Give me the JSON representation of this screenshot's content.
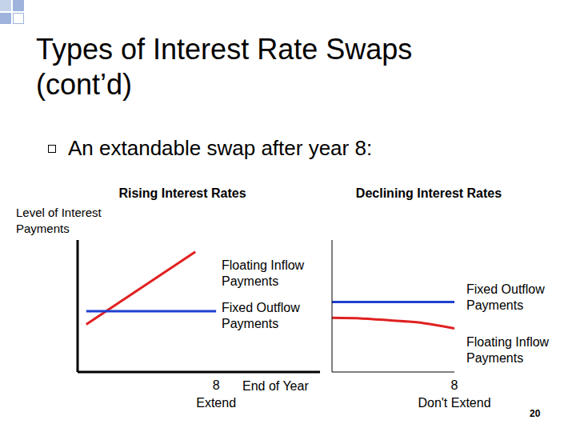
{
  "title": "Types of Interest Rate Swaps (cont’d)",
  "bullet": "An extandable swap after year 8:",
  "page_number": "20",
  "chart_data": [
    {
      "type": "line",
      "title": "Rising Interest Rates",
      "ylabel": "Level of Interest Payments",
      "xlabel": "End of Year",
      "x": [
        0.5,
        6.8,
        8
      ],
      "xlim": [
        0,
        14
      ],
      "xticks": [
        8
      ],
      "ylim": [
        0,
        10
      ],
      "yticks": [],
      "tick_labels": "x",
      "series": [
        {
          "name": "Floating Inflow Payments",
          "color": "#e02020",
          "values": [
            3.6,
            9.1,
            null
          ]
        },
        {
          "name": "Fixed Outflow Payments",
          "color": "#1f3fd0",
          "values": [
            4.6,
            4.6,
            4.6
          ]
        }
      ],
      "annotations": [
        {
          "text": "Extend",
          "x": 8
        }
      ]
    },
    {
      "type": "line",
      "title": "Declining Interest Rates",
      "x": [
        0,
        2,
        4,
        6,
        8
      ],
      "xlim": [
        0,
        8
      ],
      "xticks": [
        8
      ],
      "ylim": [
        0,
        10
      ],
      "yticks": [],
      "tick_labels": "x",
      "series": [
        {
          "name": "Floating Inflow Payments",
          "color": "#e02020",
          "values": [
            4.1,
            4.05,
            3.9,
            3.7,
            3.3
          ]
        },
        {
          "name": "Fixed Outflow Payments",
          "color": "#1f3fd0",
          "values": [
            5.3,
            5.3,
            5.3,
            5.3,
            5.3
          ]
        }
      ],
      "annotations": [
        {
          "text": "Don't Extend",
          "x": 8
        }
      ]
    }
  ]
}
